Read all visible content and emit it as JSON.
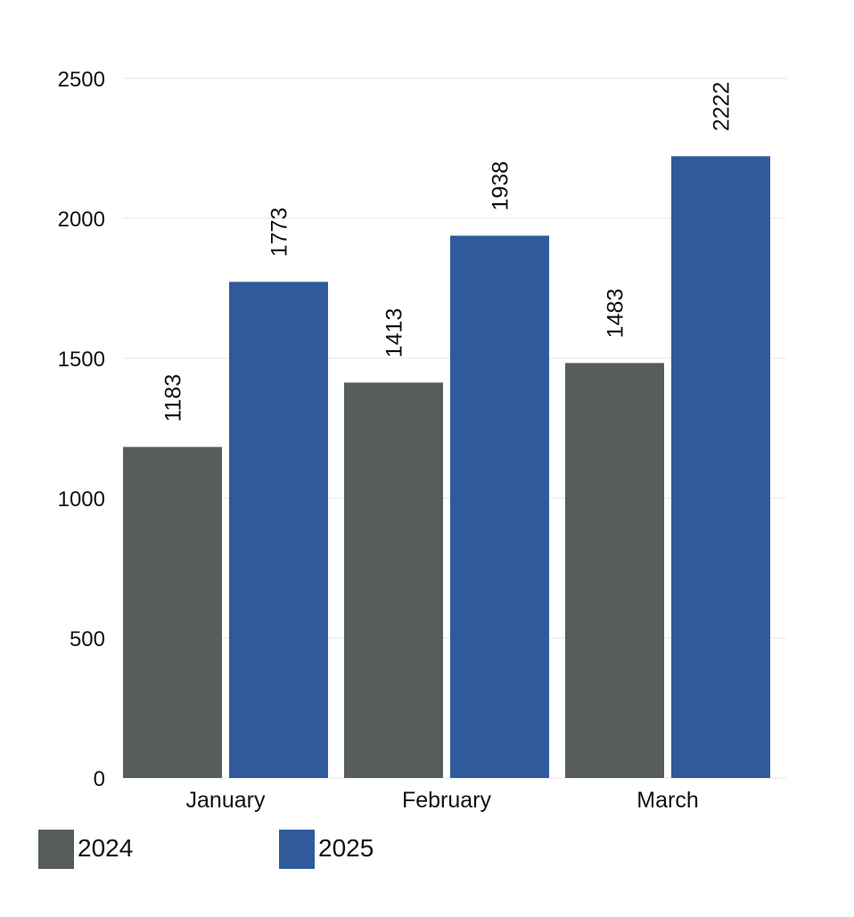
{
  "chart_data": {
    "type": "bar",
    "title": "",
    "xlabel": "",
    "ylabel": "",
    "categories": [
      "January",
      "February",
      "March"
    ],
    "series": [
      {
        "name": "2024",
        "color": "#575d5c",
        "values": [
          1183,
          1413,
          1483
        ]
      },
      {
        "name": "2025",
        "color": "#2f5b9b",
        "values": [
          1773,
          1938,
          2222
        ]
      }
    ],
    "ylim": [
      0,
      2500
    ],
    "yticks": [
      0,
      500,
      1000,
      1500,
      2000,
      2500
    ],
    "grid": true,
    "grid_color": "#e6e6e6",
    "data_labels": "rotated-vertical",
    "legend_position": "bottom-left"
  }
}
